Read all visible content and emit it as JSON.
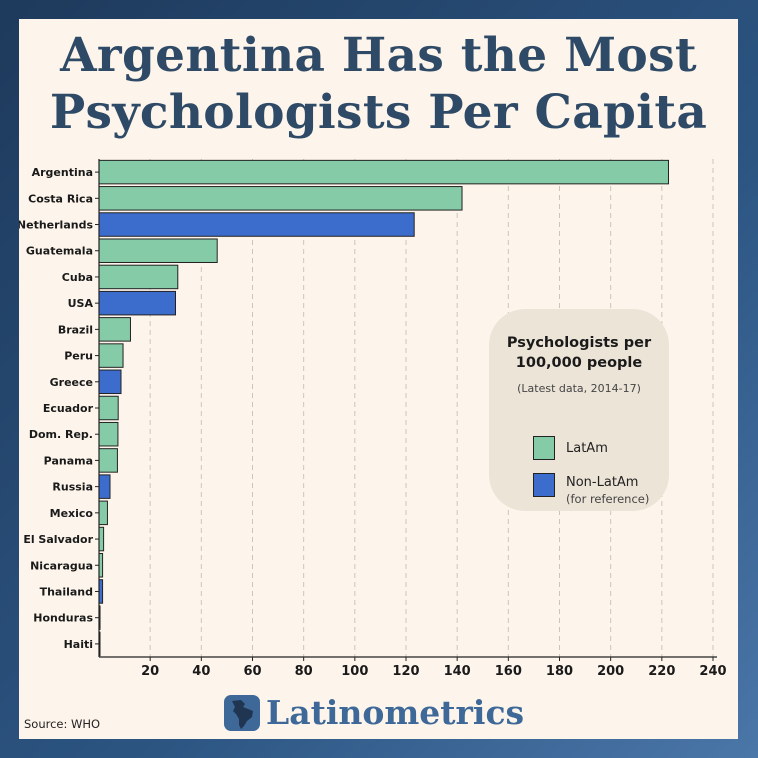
{
  "title_line1": "Argentina Has the Most",
  "title_line2": "Psychologists Per Capita",
  "legend": {
    "title": "Psychologists per\n100,000 people",
    "subtitle": "(Latest data, 2014-17)",
    "latam_label": "LatAm",
    "nonlatam_label": "Non-LatAm",
    "nonlatam_note": "(for reference)"
  },
  "colors": {
    "latam": "#86cba8",
    "nonlatam": "#3d6dcc",
    "title": "#2e4a66",
    "brand": "#3d6897"
  },
  "brand": {
    "name": "Latinometrics",
    "logo_icon": "latin-america-map-icon"
  },
  "source": "Source: WHO",
  "chart_data": {
    "type": "bar",
    "orientation": "horizontal",
    "categories": [
      "Argentina",
      "Costa Rica",
      "Netherlands",
      "Guatemala",
      "Cuba",
      "USA",
      "Brazil",
      "Peru",
      "Greece",
      "Ecuador",
      "Dom. Rep.",
      "Panama",
      "Russia",
      "Mexico",
      "El Salvador",
      "Nicaragua",
      "Thailand",
      "Honduras",
      "Haiti"
    ],
    "values": [
      222.6,
      141.9,
      123.2,
      46.2,
      30.8,
      29.9,
      12.3,
      9.4,
      8.6,
      7.5,
      7.4,
      7.2,
      4.3,
      3.3,
      1.8,
      1.4,
      1.4,
      0.4,
      0.3
    ],
    "group": [
      "LatAm",
      "LatAm",
      "Non-LatAm",
      "LatAm",
      "LatAm",
      "Non-LatAm",
      "LatAm",
      "LatAm",
      "Non-LatAm",
      "LatAm",
      "LatAm",
      "LatAm",
      "Non-LatAm",
      "LatAm",
      "LatAm",
      "LatAm",
      "Non-LatAm",
      "LatAm",
      "LatAm"
    ],
    "xticks": [
      20,
      40,
      60,
      80,
      100,
      120,
      140,
      160,
      180,
      200,
      220,
      240
    ],
    "xlim": [
      0,
      240
    ],
    "grid": "vertical-dashed",
    "legend_position": "right"
  }
}
